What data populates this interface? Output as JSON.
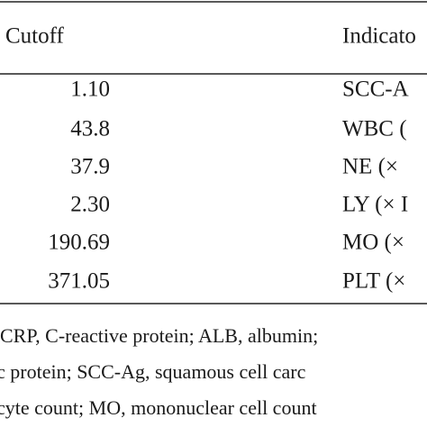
{
  "table": {
    "header": [
      "Cutoff",
      "Indicato"
    ],
    "rows": [
      [
        "1.10",
        "SCC-A"
      ],
      [
        "43.8",
        "WBC ("
      ],
      [
        "37.9",
        "NE (×"
      ],
      [
        "2.30",
        "LY (× I"
      ],
      [
        "190.69",
        "MO (×"
      ],
      [
        "371.05",
        "PLT (×"
      ]
    ]
  },
  "footnote": [
    "CRP, C-reactive protein; ALB, albumin;",
    "c protein; SCC-Ag, squamous cell carc",
    "cyte count; MO, mononuclear cell count"
  ]
}
